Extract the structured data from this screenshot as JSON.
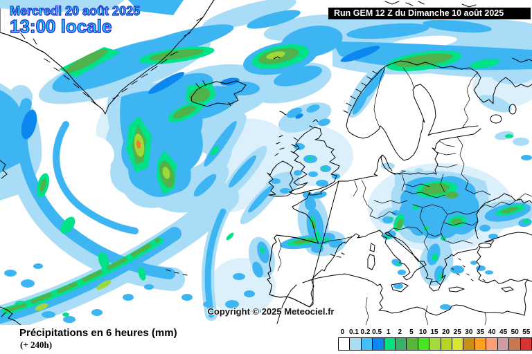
{
  "header": {
    "date": "Mercredi 20 août 2025",
    "time": "13:00 locale",
    "run": "Run GEM 12 Z du Dimanche 10 août 2025"
  },
  "map": {
    "copyright": "Copyright © 2025 Meteociel.fr",
    "model": "GEM",
    "region": "Europe / North Atlantic"
  },
  "footer": {
    "title": "Précipitations en 6 heures (mm)",
    "subtitle": "(+ 240h)"
  },
  "legend": {
    "values": [
      "0",
      "0.1",
      "0.2",
      "0.5",
      "1",
      "2",
      "5",
      "10",
      "15",
      "20",
      "25",
      "30",
      "35",
      "40",
      "45",
      "50",
      "55"
    ],
    "colors": [
      "#ffffff",
      "#aadcf6",
      "#46bef6",
      "#0c86f0",
      "#00e282",
      "#38b26a",
      "#55b83c",
      "#47e422",
      "#a4da3c",
      "#b7d51f",
      "#dce62e",
      "#c89014",
      "#ffa01e",
      "#ff9d78",
      "#cf9ca4",
      "#c87850",
      "#d83232"
    ]
  },
  "palette": {
    "precip_trace": "#dcf0fc",
    "precip_light": "#a9dcf7",
    "precip_medium": "#3eb5f3",
    "precip_strong": "#0d87f0",
    "rain_green_edge": "#00e287",
    "rain_green": "#4fb24a",
    "rain_core": "#a0d838",
    "rain_max": "#f07a2e",
    "date_fill": "#16d7fa",
    "date_outline": "#2b30d6",
    "runbox_bg": "#000000"
  }
}
